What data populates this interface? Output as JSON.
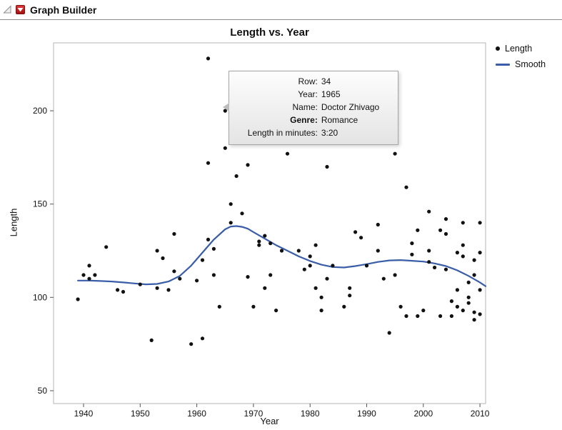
{
  "window": {
    "title": "Graph Builder"
  },
  "legend": {
    "items": [
      {
        "label": "Length",
        "type": "point",
        "color": "#111111"
      },
      {
        "label": "Smooth",
        "type": "line",
        "color": "#3a5da8"
      }
    ]
  },
  "tooltip": {
    "rows": [
      {
        "label": "Row:",
        "value": "34",
        "bold": false
      },
      {
        "label": "Year:",
        "value": "1965",
        "bold": false
      },
      {
        "label": "Name:",
        "value": "Doctor Zhivago",
        "bold": false
      },
      {
        "label": "Genre:",
        "value": "Romance",
        "bold": true
      },
      {
        "label": "Length in minutes:",
        "value": "3:20",
        "bold": false
      }
    ]
  },
  "chart_data": {
    "type": "scatter",
    "title": "Length vs. Year",
    "xlabel": "Year",
    "ylabel": "Length",
    "xlim": [
      1934.7,
      2011.0
    ],
    "ylim": [
      43.1,
      236.4
    ],
    "xticks": [
      1940,
      1950,
      1960,
      1970,
      1980,
      1990,
      2000,
      2010
    ],
    "yticks": [
      50,
      100,
      150,
      200
    ],
    "grid": false,
    "legend_position": "right-top",
    "series": [
      {
        "name": "Length",
        "type": "scatter",
        "color": "#111111",
        "points": [
          [
            1939,
            99
          ],
          [
            1940,
            112
          ],
          [
            1941,
            117
          ],
          [
            1941,
            110
          ],
          [
            1942,
            112
          ],
          [
            1944,
            127
          ],
          [
            1946,
            104
          ],
          [
            1947,
            103
          ],
          [
            1950,
            107
          ],
          [
            1952,
            77
          ],
          [
            1953,
            105
          ],
          [
            1953,
            125
          ],
          [
            1954,
            121
          ],
          [
            1955,
            104
          ],
          [
            1956,
            134
          ],
          [
            1956,
            114
          ],
          [
            1957,
            110
          ],
          [
            1959,
            75
          ],
          [
            1960,
            109
          ],
          [
            1961,
            120
          ],
          [
            1961,
            78
          ],
          [
            1962,
            228
          ],
          [
            1962,
            172
          ],
          [
            1962,
            131
          ],
          [
            1963,
            126
          ],
          [
            1963,
            112
          ],
          [
            1964,
            95
          ],
          [
            1965,
            200
          ],
          [
            1965,
            180
          ],
          [
            1966,
            140
          ],
          [
            1966,
            150
          ],
          [
            1967,
            165
          ],
          [
            1968,
            145
          ],
          [
            1969,
            171
          ],
          [
            1969,
            111
          ],
          [
            1970,
            95
          ],
          [
            1971,
            128
          ],
          [
            1971,
            130
          ],
          [
            1972,
            133
          ],
          [
            1972,
            105
          ],
          [
            1973,
            129
          ],
          [
            1973,
            112
          ],
          [
            1974,
            93
          ],
          [
            1975,
            125
          ],
          [
            1976,
            177
          ],
          [
            1978,
            125
          ],
          [
            1979,
            115
          ],
          [
            1980,
            122
          ],
          [
            1980,
            117
          ],
          [
            1981,
            128
          ],
          [
            1981,
            105
          ],
          [
            1982,
            100
          ],
          [
            1982,
            93
          ],
          [
            1983,
            170
          ],
          [
            1983,
            110
          ],
          [
            1984,
            117
          ],
          [
            1986,
            95
          ],
          [
            1987,
            105
          ],
          [
            1987,
            101
          ],
          [
            1988,
            135
          ],
          [
            1989,
            132
          ],
          [
            1990,
            117
          ],
          [
            1992,
            139
          ],
          [
            1992,
            125
          ],
          [
            1993,
            110
          ],
          [
            1994,
            81
          ],
          [
            1995,
            177
          ],
          [
            1995,
            112
          ],
          [
            1996,
            95
          ],
          [
            1997,
            159
          ],
          [
            1997,
            90
          ],
          [
            1998,
            129
          ],
          [
            1998,
            123
          ],
          [
            1999,
            136
          ],
          [
            1999,
            90
          ],
          [
            2000,
            93
          ],
          [
            2001,
            146
          ],
          [
            2001,
            125
          ],
          [
            2001,
            119
          ],
          [
            2002,
            116
          ],
          [
            2003,
            136
          ],
          [
            2003,
            90
          ],
          [
            2004,
            142
          ],
          [
            2004,
            134
          ],
          [
            2004,
            115
          ],
          [
            2005,
            98
          ],
          [
            2005,
            90
          ],
          [
            2006,
            124
          ],
          [
            2006,
            104
          ],
          [
            2006,
            95
          ],
          [
            2007,
            140
          ],
          [
            2007,
            122
          ],
          [
            2007,
            128
          ],
          [
            2007,
            93
          ],
          [
            2008,
            100
          ],
          [
            2008,
            97
          ],
          [
            2008,
            108
          ],
          [
            2009,
            120
          ],
          [
            2009,
            112
          ],
          [
            2009,
            92
          ],
          [
            2009,
            88
          ],
          [
            2010,
            140
          ],
          [
            2010,
            124
          ],
          [
            2010,
            104
          ],
          [
            2010,
            91
          ]
        ]
      },
      {
        "name": "Smooth",
        "type": "line",
        "color": "#3a5da8",
        "points": [
          [
            1939,
            109
          ],
          [
            1941,
            109
          ],
          [
            1943,
            108.8
          ],
          [
            1945,
            108.5
          ],
          [
            1947,
            108
          ],
          [
            1949,
            107.5
          ],
          [
            1951,
            107
          ],
          [
            1953,
            107.2
          ],
          [
            1955,
            108.5
          ],
          [
            1957,
            111.5
          ],
          [
            1959,
            117
          ],
          [
            1961,
            124
          ],
          [
            1963,
            131
          ],
          [
            1965,
            136.5
          ],
          [
            1966,
            138
          ],
          [
            1967,
            138.2
          ],
          [
            1968,
            137.8
          ],
          [
            1969,
            136.8
          ],
          [
            1970,
            135
          ],
          [
            1972,
            131.5
          ],
          [
            1974,
            128
          ],
          [
            1976,
            125
          ],
          [
            1978,
            122
          ],
          [
            1980,
            119.5
          ],
          [
            1982,
            117.5
          ],
          [
            1984,
            116.3
          ],
          [
            1986,
            116
          ],
          [
            1988,
            116.8
          ],
          [
            1990,
            117.8
          ],
          [
            1992,
            119
          ],
          [
            1994,
            119.8
          ],
          [
            1996,
            120
          ],
          [
            1998,
            119.6
          ],
          [
            2000,
            119.2
          ],
          [
            2002,
            118.2
          ],
          [
            2004,
            116.8
          ],
          [
            2006,
            114.5
          ],
          [
            2008,
            111.5
          ],
          [
            2010,
            108
          ],
          [
            2011,
            106
          ]
        ]
      }
    ]
  }
}
